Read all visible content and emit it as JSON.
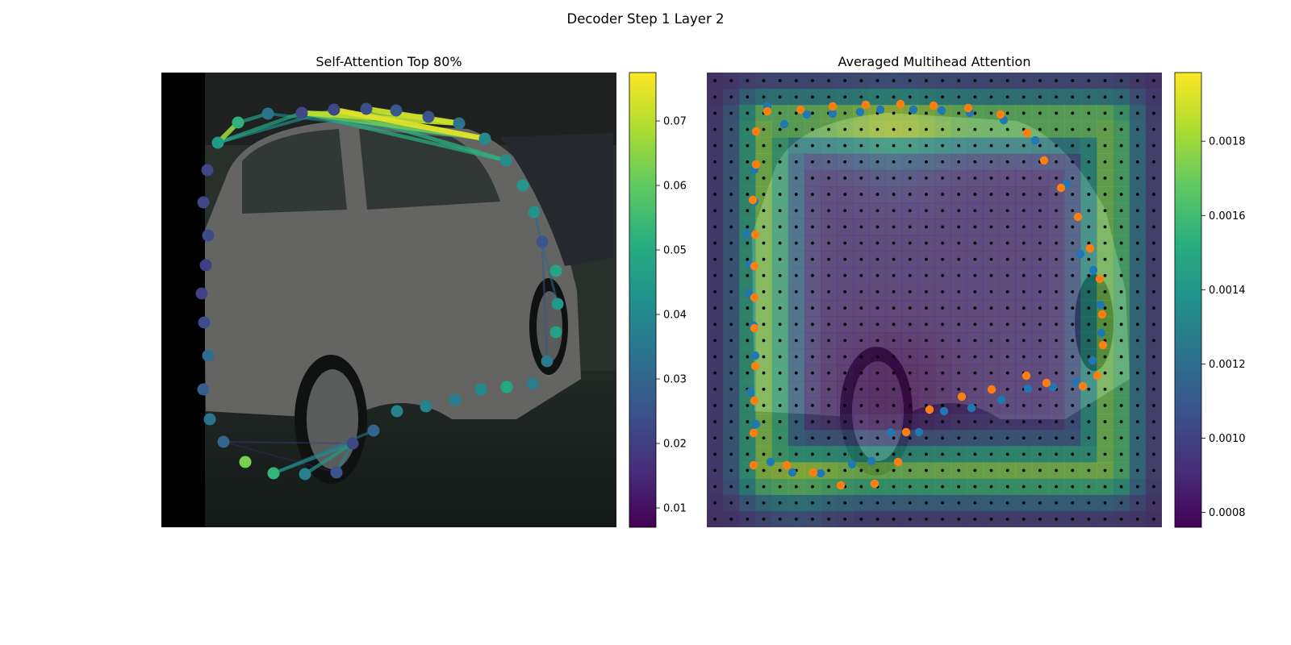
{
  "figure": {
    "suptitle": "Decoder Step 1 Layer 2"
  },
  "chart_data": [
    {
      "type": "scatter",
      "title": "Self-Attention Top 80%",
      "xlabel": "",
      "ylabel": "",
      "colorbar": {
        "cmap": "viridis",
        "min": 0.007,
        "max": 0.0775,
        "ticks": [
          0.01,
          0.02,
          0.03,
          0.04,
          0.05,
          0.06,
          0.07
        ],
        "tick_labels": [
          "0.01",
          "0.02",
          "0.03",
          "0.04",
          "0.05",
          "0.06",
          "0.07"
        ]
      },
      "points": [
        {
          "x": 70,
          "y": 87,
          "v": 0.045
        },
        {
          "x": 95,
          "y": 62,
          "v": 0.052
        },
        {
          "x": 132,
          "y": 51,
          "v": 0.034
        },
        {
          "x": 174,
          "y": 50,
          "v": 0.022
        },
        {
          "x": 214,
          "y": 46,
          "v": 0.022
        },
        {
          "x": 254,
          "y": 45,
          "v": 0.024
        },
        {
          "x": 291,
          "y": 47,
          "v": 0.026
        },
        {
          "x": 331,
          "y": 55,
          "v": 0.025
        },
        {
          "x": 369,
          "y": 63,
          "v": 0.034
        },
        {
          "x": 401,
          "y": 82,
          "v": 0.04
        },
        {
          "x": 427,
          "y": 109,
          "v": 0.041
        },
        {
          "x": 448,
          "y": 140,
          "v": 0.044
        },
        {
          "x": 462,
          "y": 173,
          "v": 0.043
        },
        {
          "x": 472,
          "y": 210,
          "v": 0.025
        },
        {
          "x": 489,
          "y": 246,
          "v": 0.048
        },
        {
          "x": 491,
          "y": 287,
          "v": 0.044
        },
        {
          "x": 489,
          "y": 322,
          "v": 0.047
        },
        {
          "x": 478,
          "y": 358,
          "v": 0.036
        },
        {
          "x": 460,
          "y": 386,
          "v": 0.037
        },
        {
          "x": 428,
          "y": 390,
          "v": 0.049
        },
        {
          "x": 396,
          "y": 393,
          "v": 0.04
        },
        {
          "x": 364,
          "y": 406,
          "v": 0.037
        },
        {
          "x": 328,
          "y": 414,
          "v": 0.038
        },
        {
          "x": 292,
          "y": 420,
          "v": 0.038
        },
        {
          "x": 263,
          "y": 444,
          "v": 0.03
        },
        {
          "x": 237,
          "y": 460,
          "v": 0.022
        },
        {
          "x": 217,
          "y": 496,
          "v": 0.025
        },
        {
          "x": 178,
          "y": 498,
          "v": 0.038
        },
        {
          "x": 139,
          "y": 497,
          "v": 0.053
        },
        {
          "x": 104,
          "y": 483,
          "v": 0.063
        },
        {
          "x": 77,
          "y": 458,
          "v": 0.03
        },
        {
          "x": 60,
          "y": 430,
          "v": 0.034
        },
        {
          "x": 52,
          "y": 393,
          "v": 0.028
        },
        {
          "x": 58,
          "y": 351,
          "v": 0.032
        },
        {
          "x": 53,
          "y": 310,
          "v": 0.023
        },
        {
          "x": 50,
          "y": 274,
          "v": 0.021
        },
        {
          "x": 55,
          "y": 239,
          "v": 0.02
        },
        {
          "x": 58,
          "y": 202,
          "v": 0.023
        },
        {
          "x": 52,
          "y": 161,
          "v": 0.022
        },
        {
          "x": 57,
          "y": 121,
          "v": 0.022
        }
      ],
      "links": [
        {
          "from": 4,
          "to": 9,
          "v": 0.074
        },
        {
          "from": 5,
          "to": 8,
          "v": 0.072
        },
        {
          "from": 3,
          "to": 8,
          "v": 0.07
        },
        {
          "from": 3,
          "to": 7,
          "v": 0.066
        },
        {
          "from": 3,
          "to": 9,
          "v": 0.062
        },
        {
          "from": 4,
          "to": 10,
          "v": 0.052
        },
        {
          "from": 3,
          "to": 10,
          "v": 0.05
        },
        {
          "from": 0,
          "to": 1,
          "v": 0.066
        },
        {
          "from": 0,
          "to": 3,
          "v": 0.048
        },
        {
          "from": 1,
          "to": 2,
          "v": 0.046
        },
        {
          "from": 0,
          "to": 4,
          "v": 0.042
        },
        {
          "from": 2,
          "to": 9,
          "v": 0.04
        },
        {
          "from": 27,
          "to": 25,
          "v": 0.045
        },
        {
          "from": 28,
          "to": 25,
          "v": 0.042
        },
        {
          "from": 26,
          "to": 25,
          "v": 0.038
        },
        {
          "from": 24,
          "to": 28,
          "v": 0.034
        },
        {
          "from": 25,
          "to": 30,
          "v": 0.018
        },
        {
          "from": 26,
          "to": 30,
          "v": 0.014
        },
        {
          "from": 12,
          "to": 15,
          "v": 0.03
        },
        {
          "from": 13,
          "to": 17,
          "v": 0.026
        }
      ]
    },
    {
      "type": "heatmap",
      "title": "Averaged Multihead Attention",
      "xlabel": "",
      "ylabel": "",
      "grid": {
        "rows": 28,
        "cols": 28
      },
      "colorbar": {
        "cmap": "viridis",
        "min": 0.00076,
        "max": 0.001985,
        "ticks": [
          0.0008,
          0.001,
          0.0012,
          0.0014,
          0.0016,
          0.0018
        ],
        "tick_labels": [
          "0.0008",
          "0.0010",
          "0.0012",
          "0.0014",
          "0.0016",
          "0.0018"
        ]
      },
      "series": [
        {
          "color": "#1f77b4",
          "points": [
            [
              75,
              42
            ],
            [
              96,
              64
            ],
            [
              124,
              52
            ],
            [
              156,
              51
            ],
            [
              190,
              49
            ],
            [
              215,
              46
            ],
            [
              256,
              46
            ],
            [
              291,
              47
            ],
            [
              326,
              50
            ],
            [
              368,
              59
            ],
            [
              407,
              84
            ],
            [
              446,
              138
            ],
            [
              463,
              225
            ],
            [
              479,
              245
            ],
            [
              488,
              288
            ],
            [
              489,
              323
            ],
            [
              478,
              357
            ],
            [
              458,
              384
            ],
            [
              429,
              390
            ],
            [
              398,
              392
            ],
            [
              365,
              406
            ],
            [
              328,
              416
            ],
            [
              294,
              420
            ],
            [
              263,
              446
            ],
            [
              228,
              446
            ],
            [
              204,
              482
            ],
            [
              180,
              486
            ],
            [
              141,
              497
            ],
            [
              106,
              496
            ],
            [
              79,
              483
            ],
            [
              61,
              436
            ],
            [
              54,
              396
            ],
            [
              60,
              351
            ],
            [
              58,
              314
            ],
            [
              52,
              274
            ],
            [
              53,
              238
            ],
            [
              50,
              200
            ],
            [
              59,
              160
            ],
            [
              59,
              120
            ]
          ]
        },
        {
          "color": "#ff7f0e",
          "points": [
            [
              75,
              48
            ],
            [
              116,
              46
            ],
            [
              156,
              42
            ],
            [
              197,
              40
            ],
            [
              240,
              39
            ],
            [
              281,
              41
            ],
            [
              324,
              44
            ],
            [
              364,
              52
            ],
            [
              397,
              75
            ],
            [
              418,
              109
            ],
            [
              439,
              143
            ],
            [
              460,
              179
            ],
            [
              475,
              218
            ],
            [
              487,
              256
            ],
            [
              490,
              300
            ],
            [
              491,
              338
            ],
            [
              484,
              376
            ],
            [
              466,
              389
            ],
            [
              421,
              385
            ],
            [
              396,
              376
            ],
            [
              353,
              393
            ],
            [
              316,
              402
            ],
            [
              276,
              418
            ],
            [
              247,
              446
            ],
            [
              237,
              483
            ],
            [
              208,
              510
            ],
            [
              166,
              512
            ],
            [
              132,
              496
            ],
            [
              99,
              487
            ],
            [
              58,
              487
            ],
            [
              58,
              447
            ],
            [
              59,
              407
            ],
            [
              60,
              364
            ],
            [
              59,
              317
            ],
            [
              59,
              279
            ],
            [
              59,
              240
            ],
            [
              60,
              201
            ],
            [
              57,
              158
            ],
            [
              61,
              114
            ],
            [
              61,
              73
            ]
          ]
        }
      ]
    }
  ]
}
